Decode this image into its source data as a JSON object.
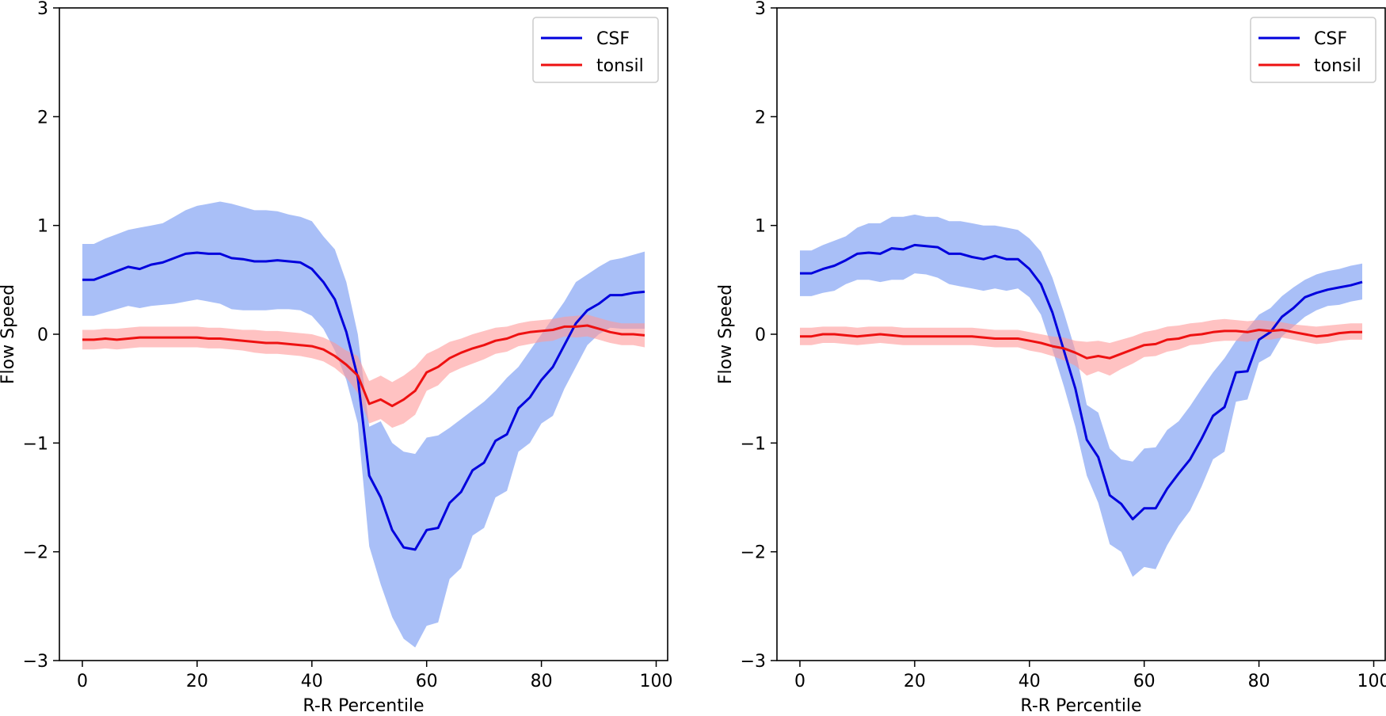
{
  "colors": {
    "csf_line": "#0000dd",
    "csf_band": "#6f94f2",
    "tonsil_line": "#ee1111",
    "tonsil_band": "#ff9a9a"
  },
  "chart_data": [
    {
      "type": "line",
      "xlabel": "R-R Percentile",
      "ylabel": "Flow Speed",
      "xlim": [
        -4,
        102
      ],
      "ylim": [
        -3,
        3
      ],
      "xticks": [
        "0",
        "20",
        "40",
        "60",
        "80",
        "100"
      ],
      "yticks": [
        "−3",
        "−2",
        "−1",
        "0",
        "1",
        "2",
        "3"
      ],
      "legend_position": "top-right",
      "x": [
        0,
        2,
        4,
        6,
        8,
        10,
        12,
        14,
        16,
        18,
        20,
        22,
        24,
        26,
        28,
        30,
        32,
        34,
        36,
        38,
        40,
        42,
        44,
        46,
        48,
        50,
        52,
        54,
        56,
        58,
        60,
        62,
        64,
        66,
        68,
        70,
        72,
        74,
        76,
        78,
        80,
        82,
        84,
        86,
        88,
        90,
        92,
        94,
        96,
        98
      ],
      "series": [
        {
          "name": "CSF",
          "mean": [
            0.5,
            0.5,
            0.54,
            0.58,
            0.62,
            0.6,
            0.64,
            0.66,
            0.7,
            0.74,
            0.75,
            0.74,
            0.74,
            0.7,
            0.69,
            0.67,
            0.67,
            0.68,
            0.67,
            0.66,
            0.6,
            0.48,
            0.32,
            0.02,
            -0.4,
            -1.3,
            -1.5,
            -1.8,
            -1.96,
            -1.98,
            -1.8,
            -1.78,
            -1.55,
            -1.45,
            -1.25,
            -1.18,
            -0.98,
            -0.92,
            -0.68,
            -0.58,
            -0.42,
            -0.3,
            -0.1,
            0.1,
            0.22,
            0.28,
            0.36,
            0.36,
            0.38,
            0.39
          ],
          "upper": [
            0.83,
            0.83,
            0.88,
            0.92,
            0.96,
            0.98,
            1.0,
            1.02,
            1.08,
            1.14,
            1.18,
            1.2,
            1.22,
            1.2,
            1.17,
            1.14,
            1.14,
            1.13,
            1.1,
            1.08,
            1.04,
            0.9,
            0.78,
            0.48,
            0.0,
            -0.85,
            -0.8,
            -1.0,
            -1.08,
            -1.1,
            -0.95,
            -0.93,
            -0.86,
            -0.78,
            -0.7,
            -0.62,
            -0.52,
            -0.4,
            -0.3,
            -0.15,
            0.0,
            0.15,
            0.3,
            0.48,
            0.55,
            0.62,
            0.68,
            0.7,
            0.73,
            0.76
          ],
          "lower": [
            0.17,
            0.17,
            0.2,
            0.23,
            0.26,
            0.24,
            0.26,
            0.27,
            0.28,
            0.3,
            0.32,
            0.3,
            0.28,
            0.23,
            0.22,
            0.22,
            0.22,
            0.23,
            0.23,
            0.22,
            0.17,
            0.05,
            -0.15,
            -0.42,
            -0.82,
            -1.95,
            -2.3,
            -2.6,
            -2.8,
            -2.88,
            -2.68,
            -2.65,
            -2.25,
            -2.15,
            -1.85,
            -1.78,
            -1.5,
            -1.44,
            -1.08,
            -1.0,
            -0.82,
            -0.75,
            -0.5,
            -0.3,
            -0.1,
            0.0,
            0.06,
            0.05,
            0.05,
            0.05
          ]
        },
        {
          "name": "tonsil",
          "mean": [
            -0.05,
            -0.05,
            -0.04,
            -0.05,
            -0.04,
            -0.03,
            -0.03,
            -0.03,
            -0.03,
            -0.03,
            -0.03,
            -0.04,
            -0.04,
            -0.05,
            -0.06,
            -0.07,
            -0.08,
            -0.08,
            -0.09,
            -0.1,
            -0.11,
            -0.14,
            -0.2,
            -0.28,
            -0.38,
            -0.64,
            -0.6,
            -0.66,
            -0.6,
            -0.52,
            -0.35,
            -0.3,
            -0.22,
            -0.17,
            -0.13,
            -0.1,
            -0.06,
            -0.04,
            0.0,
            0.02,
            0.03,
            0.04,
            0.07,
            0.07,
            0.08,
            0.05,
            0.02,
            0.0,
            0.0,
            -0.01
          ],
          "upper": [
            0.04,
            0.04,
            0.05,
            0.05,
            0.06,
            0.07,
            0.07,
            0.07,
            0.07,
            0.07,
            0.07,
            0.06,
            0.06,
            0.05,
            0.04,
            0.04,
            0.03,
            0.03,
            0.02,
            0.01,
            0.0,
            -0.03,
            -0.08,
            -0.15,
            -0.2,
            -0.43,
            -0.38,
            -0.44,
            -0.38,
            -0.3,
            -0.18,
            -0.13,
            -0.07,
            -0.04,
            0.0,
            0.03,
            0.06,
            0.07,
            0.1,
            0.12,
            0.13,
            0.14,
            0.16,
            0.17,
            0.18,
            0.15,
            0.12,
            0.1,
            0.1,
            0.1
          ],
          "lower": [
            -0.14,
            -0.14,
            -0.13,
            -0.14,
            -0.13,
            -0.12,
            -0.12,
            -0.12,
            -0.12,
            -0.12,
            -0.12,
            -0.13,
            -0.13,
            -0.14,
            -0.15,
            -0.17,
            -0.18,
            -0.18,
            -0.19,
            -0.2,
            -0.22,
            -0.25,
            -0.31,
            -0.4,
            -0.54,
            -0.82,
            -0.78,
            -0.86,
            -0.82,
            -0.74,
            -0.52,
            -0.47,
            -0.36,
            -0.31,
            -0.27,
            -0.23,
            -0.18,
            -0.16,
            -0.11,
            -0.09,
            -0.07,
            -0.06,
            -0.02,
            -0.03,
            -0.02,
            -0.05,
            -0.08,
            -0.1,
            -0.1,
            -0.12
          ]
        }
      ]
    },
    {
      "type": "line",
      "xlabel": "R-R Percentile",
      "ylabel": "Flow Speed",
      "xlim": [
        -4,
        102
      ],
      "ylim": [
        -3,
        3
      ],
      "xticks": [
        "0",
        "20",
        "40",
        "60",
        "80",
        "100"
      ],
      "yticks": [
        "−3",
        "−2",
        "−1",
        "0",
        "1",
        "2",
        "3"
      ],
      "legend_position": "top-right",
      "x": [
        0,
        2,
        4,
        6,
        8,
        10,
        12,
        14,
        16,
        18,
        20,
        22,
        24,
        26,
        28,
        30,
        32,
        34,
        36,
        38,
        40,
        42,
        44,
        46,
        48,
        50,
        52,
        54,
        56,
        58,
        60,
        62,
        64,
        66,
        68,
        70,
        72,
        74,
        76,
        78,
        80,
        82,
        84,
        86,
        88,
        90,
        92,
        94,
        96,
        98
      ],
      "series": [
        {
          "name": "CSF",
          "mean": [
            0.56,
            0.56,
            0.6,
            0.63,
            0.68,
            0.74,
            0.75,
            0.74,
            0.79,
            0.78,
            0.82,
            0.81,
            0.8,
            0.74,
            0.74,
            0.71,
            0.69,
            0.72,
            0.69,
            0.69,
            0.6,
            0.46,
            0.2,
            -0.15,
            -0.5,
            -0.97,
            -1.13,
            -1.48,
            -1.56,
            -1.7,
            -1.6,
            -1.6,
            -1.42,
            -1.28,
            -1.15,
            -0.96,
            -0.75,
            -0.67,
            -0.35,
            -0.34,
            -0.05,
            0.02,
            0.16,
            0.24,
            0.34,
            0.38,
            0.41,
            0.43,
            0.45,
            0.48
          ],
          "upper": [
            0.77,
            0.77,
            0.82,
            0.86,
            0.9,
            0.98,
            1.02,
            1.02,
            1.08,
            1.08,
            1.1,
            1.08,
            1.08,
            1.04,
            1.04,
            1.02,
            1.0,
            1.0,
            0.98,
            0.96,
            0.88,
            0.76,
            0.52,
            0.2,
            -0.15,
            -0.65,
            -0.72,
            -1.05,
            -1.15,
            -1.17,
            -1.05,
            -1.04,
            -0.88,
            -0.8,
            -0.66,
            -0.5,
            -0.35,
            -0.22,
            -0.06,
            0.05,
            0.18,
            0.24,
            0.35,
            0.43,
            0.5,
            0.55,
            0.58,
            0.6,
            0.63,
            0.65
          ],
          "lower": [
            0.35,
            0.35,
            0.38,
            0.4,
            0.46,
            0.5,
            0.5,
            0.48,
            0.5,
            0.5,
            0.56,
            0.55,
            0.52,
            0.46,
            0.44,
            0.42,
            0.4,
            0.42,
            0.4,
            0.42,
            0.34,
            0.18,
            -0.14,
            -0.48,
            -0.85,
            -1.3,
            -1.55,
            -1.93,
            -2.0,
            -2.23,
            -2.14,
            -2.16,
            -1.94,
            -1.76,
            -1.62,
            -1.4,
            -1.15,
            -1.08,
            -0.62,
            -0.6,
            -0.26,
            -0.2,
            -0.02,
            0.07,
            0.16,
            0.22,
            0.26,
            0.27,
            0.3,
            0.32
          ]
        },
        {
          "name": "tonsil",
          "mean": [
            -0.02,
            -0.02,
            0.0,
            0.0,
            -0.01,
            -0.02,
            -0.01,
            0.0,
            -0.01,
            -0.02,
            -0.02,
            -0.02,
            -0.02,
            -0.02,
            -0.02,
            -0.02,
            -0.03,
            -0.04,
            -0.04,
            -0.04,
            -0.06,
            -0.08,
            -0.11,
            -0.13,
            -0.17,
            -0.22,
            -0.2,
            -0.22,
            -0.18,
            -0.14,
            -0.1,
            -0.09,
            -0.05,
            -0.04,
            -0.01,
            0.0,
            0.02,
            0.03,
            0.03,
            0.02,
            0.04,
            0.03,
            0.04,
            0.02,
            0.0,
            -0.02,
            -0.01,
            0.01,
            0.02,
            0.02
          ],
          "upper": [
            0.06,
            0.06,
            0.07,
            0.07,
            0.07,
            0.06,
            0.07,
            0.07,
            0.07,
            0.06,
            0.06,
            0.06,
            0.06,
            0.06,
            0.06,
            0.06,
            0.05,
            0.04,
            0.04,
            0.04,
            0.02,
            0.0,
            -0.02,
            -0.03,
            -0.06,
            -0.07,
            -0.06,
            -0.08,
            -0.05,
            -0.02,
            0.02,
            0.04,
            0.07,
            0.08,
            0.1,
            0.11,
            0.13,
            0.14,
            0.13,
            0.12,
            0.13,
            0.12,
            0.11,
            0.09,
            0.08,
            0.07,
            0.08,
            0.09,
            0.1,
            0.1
          ],
          "lower": [
            -0.1,
            -0.1,
            -0.08,
            -0.08,
            -0.09,
            -0.1,
            -0.09,
            -0.08,
            -0.09,
            -0.1,
            -0.1,
            -0.1,
            -0.1,
            -0.1,
            -0.1,
            -0.1,
            -0.11,
            -0.12,
            -0.12,
            -0.12,
            -0.15,
            -0.17,
            -0.2,
            -0.24,
            -0.29,
            -0.38,
            -0.34,
            -0.38,
            -0.32,
            -0.27,
            -0.21,
            -0.2,
            -0.16,
            -0.14,
            -0.1,
            -0.09,
            -0.07,
            -0.06,
            -0.06,
            -0.07,
            -0.04,
            -0.05,
            -0.03,
            -0.05,
            -0.07,
            -0.09,
            -0.08,
            -0.06,
            -0.05,
            -0.05
          ]
        }
      ]
    }
  ]
}
